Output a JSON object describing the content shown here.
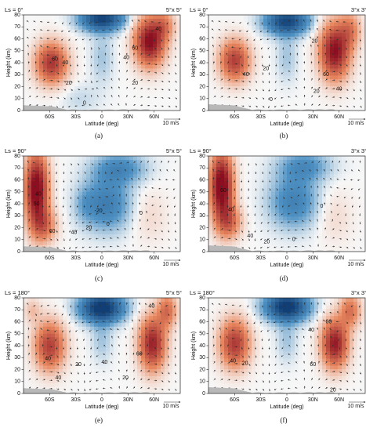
{
  "chart_data": {
    "type": "heatmap",
    "layout": "3 rows x 2 columns",
    "shared_axes": {
      "xlabel": "Latitude (deg)",
      "ylabel": "Height (km)",
      "x_ticks": [
        "60S",
        "30S",
        "0",
        "30N",
        "60N"
      ],
      "y_ticks": [
        "0",
        "10",
        "20",
        "30",
        "40",
        "50",
        "60",
        "70",
        "80"
      ],
      "xlim": [
        -90,
        90
      ],
      "ylim": [
        0,
        80
      ],
      "vector_scale": "10 m/s"
    },
    "panels": [
      {
        "id": "a",
        "label": "(a)",
        "season": "Ls = 0°",
        "resolution": "5°x 5°",
        "contour_labels": [
          {
            "t": "60",
            "lat": -54,
            "z": 43
          },
          {
            "t": "40",
            "lat": -42,
            "z": 40
          },
          {
            "t": "20",
            "lat": -38,
            "z": 23
          },
          {
            "t": "0",
            "lat": -20,
            "z": 6
          },
          {
            "t": "40",
            "lat": 28,
            "z": 44
          },
          {
            "t": "60",
            "lat": 38,
            "z": 52
          },
          {
            "t": "40",
            "lat": 65,
            "z": 68
          },
          {
            "t": "20",
            "lat": 38,
            "z": 23
          }
        ]
      },
      {
        "id": "b",
        "label": "(b)",
        "season": "Ls = 0°",
        "resolution": "3°x 3°",
        "contour_labels": [
          {
            "t": "40",
            "lat": -47,
            "z": 30
          },
          {
            "t": "20",
            "lat": -24,
            "z": 35
          },
          {
            "t": "0",
            "lat": -18,
            "z": 9
          },
          {
            "t": "20",
            "lat": 32,
            "z": 58
          },
          {
            "t": "60",
            "lat": 45,
            "z": 30
          },
          {
            "t": "20",
            "lat": 34,
            "z": 16
          },
          {
            "t": "40",
            "lat": 60,
            "z": 18
          }
        ]
      },
      {
        "id": "c",
        "label": "(c)",
        "season": "Ls = 90°",
        "resolution": "5°x 5°",
        "contour_labels": [
          {
            "t": "40",
            "lat": -73,
            "z": 48
          },
          {
            "t": "60",
            "lat": -75,
            "z": 40
          },
          {
            "t": "60",
            "lat": -57,
            "z": 17
          },
          {
            "t": "40",
            "lat": -32,
            "z": 16
          },
          {
            "t": "20",
            "lat": -15,
            "z": 20
          },
          {
            "t": "-20",
            "lat": -4,
            "z": 34
          },
          {
            "t": "0",
            "lat": 7,
            "z": 23
          },
          {
            "t": "0",
            "lat": 45,
            "z": 32
          }
        ]
      },
      {
        "id": "d",
        "label": "(d)",
        "season": "Ls = 90°",
        "resolution": "3°x 3°",
        "contour_labels": [
          {
            "t": "60",
            "lat": -73,
            "z": 51
          },
          {
            "t": "40",
            "lat": -64,
            "z": 35
          },
          {
            "t": "20",
            "lat": -23,
            "z": 8
          },
          {
            "t": "40",
            "lat": -42,
            "z": 13
          },
          {
            "t": "0",
            "lat": 8,
            "z": 10
          },
          {
            "t": "0",
            "lat": 40,
            "z": 38
          }
        ]
      },
      {
        "id": "e",
        "label": "(e)",
        "season": "Ls = 180°",
        "resolution": "5°x 5°",
        "contour_labels": [
          {
            "t": "40",
            "lat": -62,
            "z": 29
          },
          {
            "t": "40",
            "lat": -50,
            "z": 13
          },
          {
            "t": "20",
            "lat": -27,
            "z": 24
          },
          {
            "t": "40",
            "lat": 3,
            "z": 26
          },
          {
            "t": "60",
            "lat": 43,
            "z": 33
          },
          {
            "t": "40",
            "lat": 57,
            "z": 73
          },
          {
            "t": "20",
            "lat": 27,
            "z": 13
          }
        ]
      },
      {
        "id": "f",
        "label": "(f)",
        "season": "Ls = 180°",
        "resolution": "3°x 3°",
        "contour_labels": [
          {
            "t": "40",
            "lat": -62,
            "z": 27
          },
          {
            "t": "20",
            "lat": -48,
            "z": 25
          },
          {
            "t": "40",
            "lat": 28,
            "z": 53
          },
          {
            "t": "60",
            "lat": 48,
            "z": 60
          },
          {
            "t": "60",
            "lat": 30,
            "z": 24
          },
          {
            "t": "20",
            "lat": 53,
            "z": 3
          }
        ]
      }
    ]
  },
  "colors": {
    "strong_positive": "#8b0f20",
    "positive": "#e8885f",
    "neutral": "#f7f7f7",
    "negative": "#4f92c4",
    "strong_negative": "#113f75",
    "terrain": "#b8b8b8"
  }
}
